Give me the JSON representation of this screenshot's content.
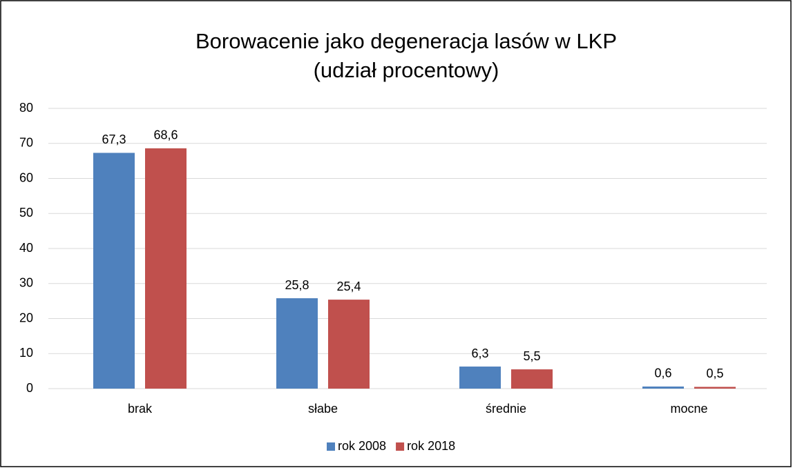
{
  "chart_data": {
    "type": "bar",
    "title": [
      "Borowacenie jako degeneracja lasów w LKP",
      "(udział procentowy)"
    ],
    "categories": [
      "brak",
      "słabe",
      "średnie",
      "mocne"
    ],
    "series": [
      {
        "name": "rok 2008",
        "color": "#4f81bd",
        "values": [
          67.3,
          25.8,
          6.3,
          0.6
        ],
        "value_labels": [
          "67,3",
          "25,8",
          "6,3",
          "0,6"
        ]
      },
      {
        "name": "rok 2018",
        "color": "#c0504d",
        "values": [
          68.6,
          25.4,
          5.5,
          0.5
        ],
        "value_labels": [
          "68,6",
          "25,4",
          "5,5",
          "0,5"
        ]
      }
    ],
    "ylim": [
      0,
      80
    ],
    "yticks": [
      0,
      10,
      20,
      30,
      40,
      50,
      60,
      70,
      80
    ],
    "grid": true,
    "legend": "bottom"
  }
}
